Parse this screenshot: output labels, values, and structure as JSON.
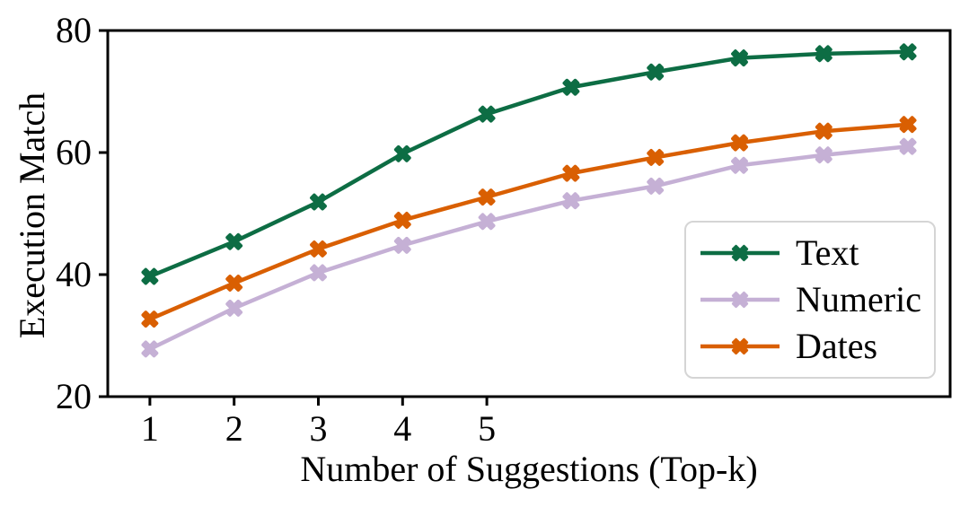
{
  "chart_data": {
    "type": "line",
    "title": "",
    "xlabel": "Number of Suggestions (Top-k)",
    "ylabel": "Execution Match",
    "x": [
      1,
      2,
      3,
      4,
      5,
      6,
      7,
      8,
      9,
      10
    ],
    "xlim": [
      0.5,
      10.5
    ],
    "ylim": [
      20,
      80
    ],
    "xtick_labels": [
      "1",
      "2",
      "3",
      "4",
      "5"
    ],
    "xtick_values": [
      1,
      2,
      3,
      4,
      5
    ],
    "ytick_labels": [
      "20",
      "40",
      "60",
      "80"
    ],
    "ytick_values": [
      20,
      40,
      60,
      80
    ],
    "grid": false,
    "marker": "X",
    "legend_position": "lower-right-inside",
    "series": [
      {
        "name": "Text",
        "color": "#0d6d44",
        "values": [
          39.7,
          45.4,
          51.9,
          59.8,
          66.3,
          70.7,
          73.2,
          75.5,
          76.2,
          76.5
        ]
      },
      {
        "name": "Numeric",
        "color": "#c5b0d5",
        "values": [
          27.8,
          34.5,
          40.3,
          44.8,
          48.7,
          52.1,
          54.5,
          57.9,
          59.6,
          61.0
        ]
      },
      {
        "name": "Dates",
        "color": "#d95f02",
        "values": [
          32.7,
          38.6,
          44.2,
          48.9,
          52.7,
          56.6,
          59.2,
          61.6,
          63.5,
          64.6
        ]
      }
    ],
    "frame_color": "#000000",
    "text_color": "#000000"
  }
}
